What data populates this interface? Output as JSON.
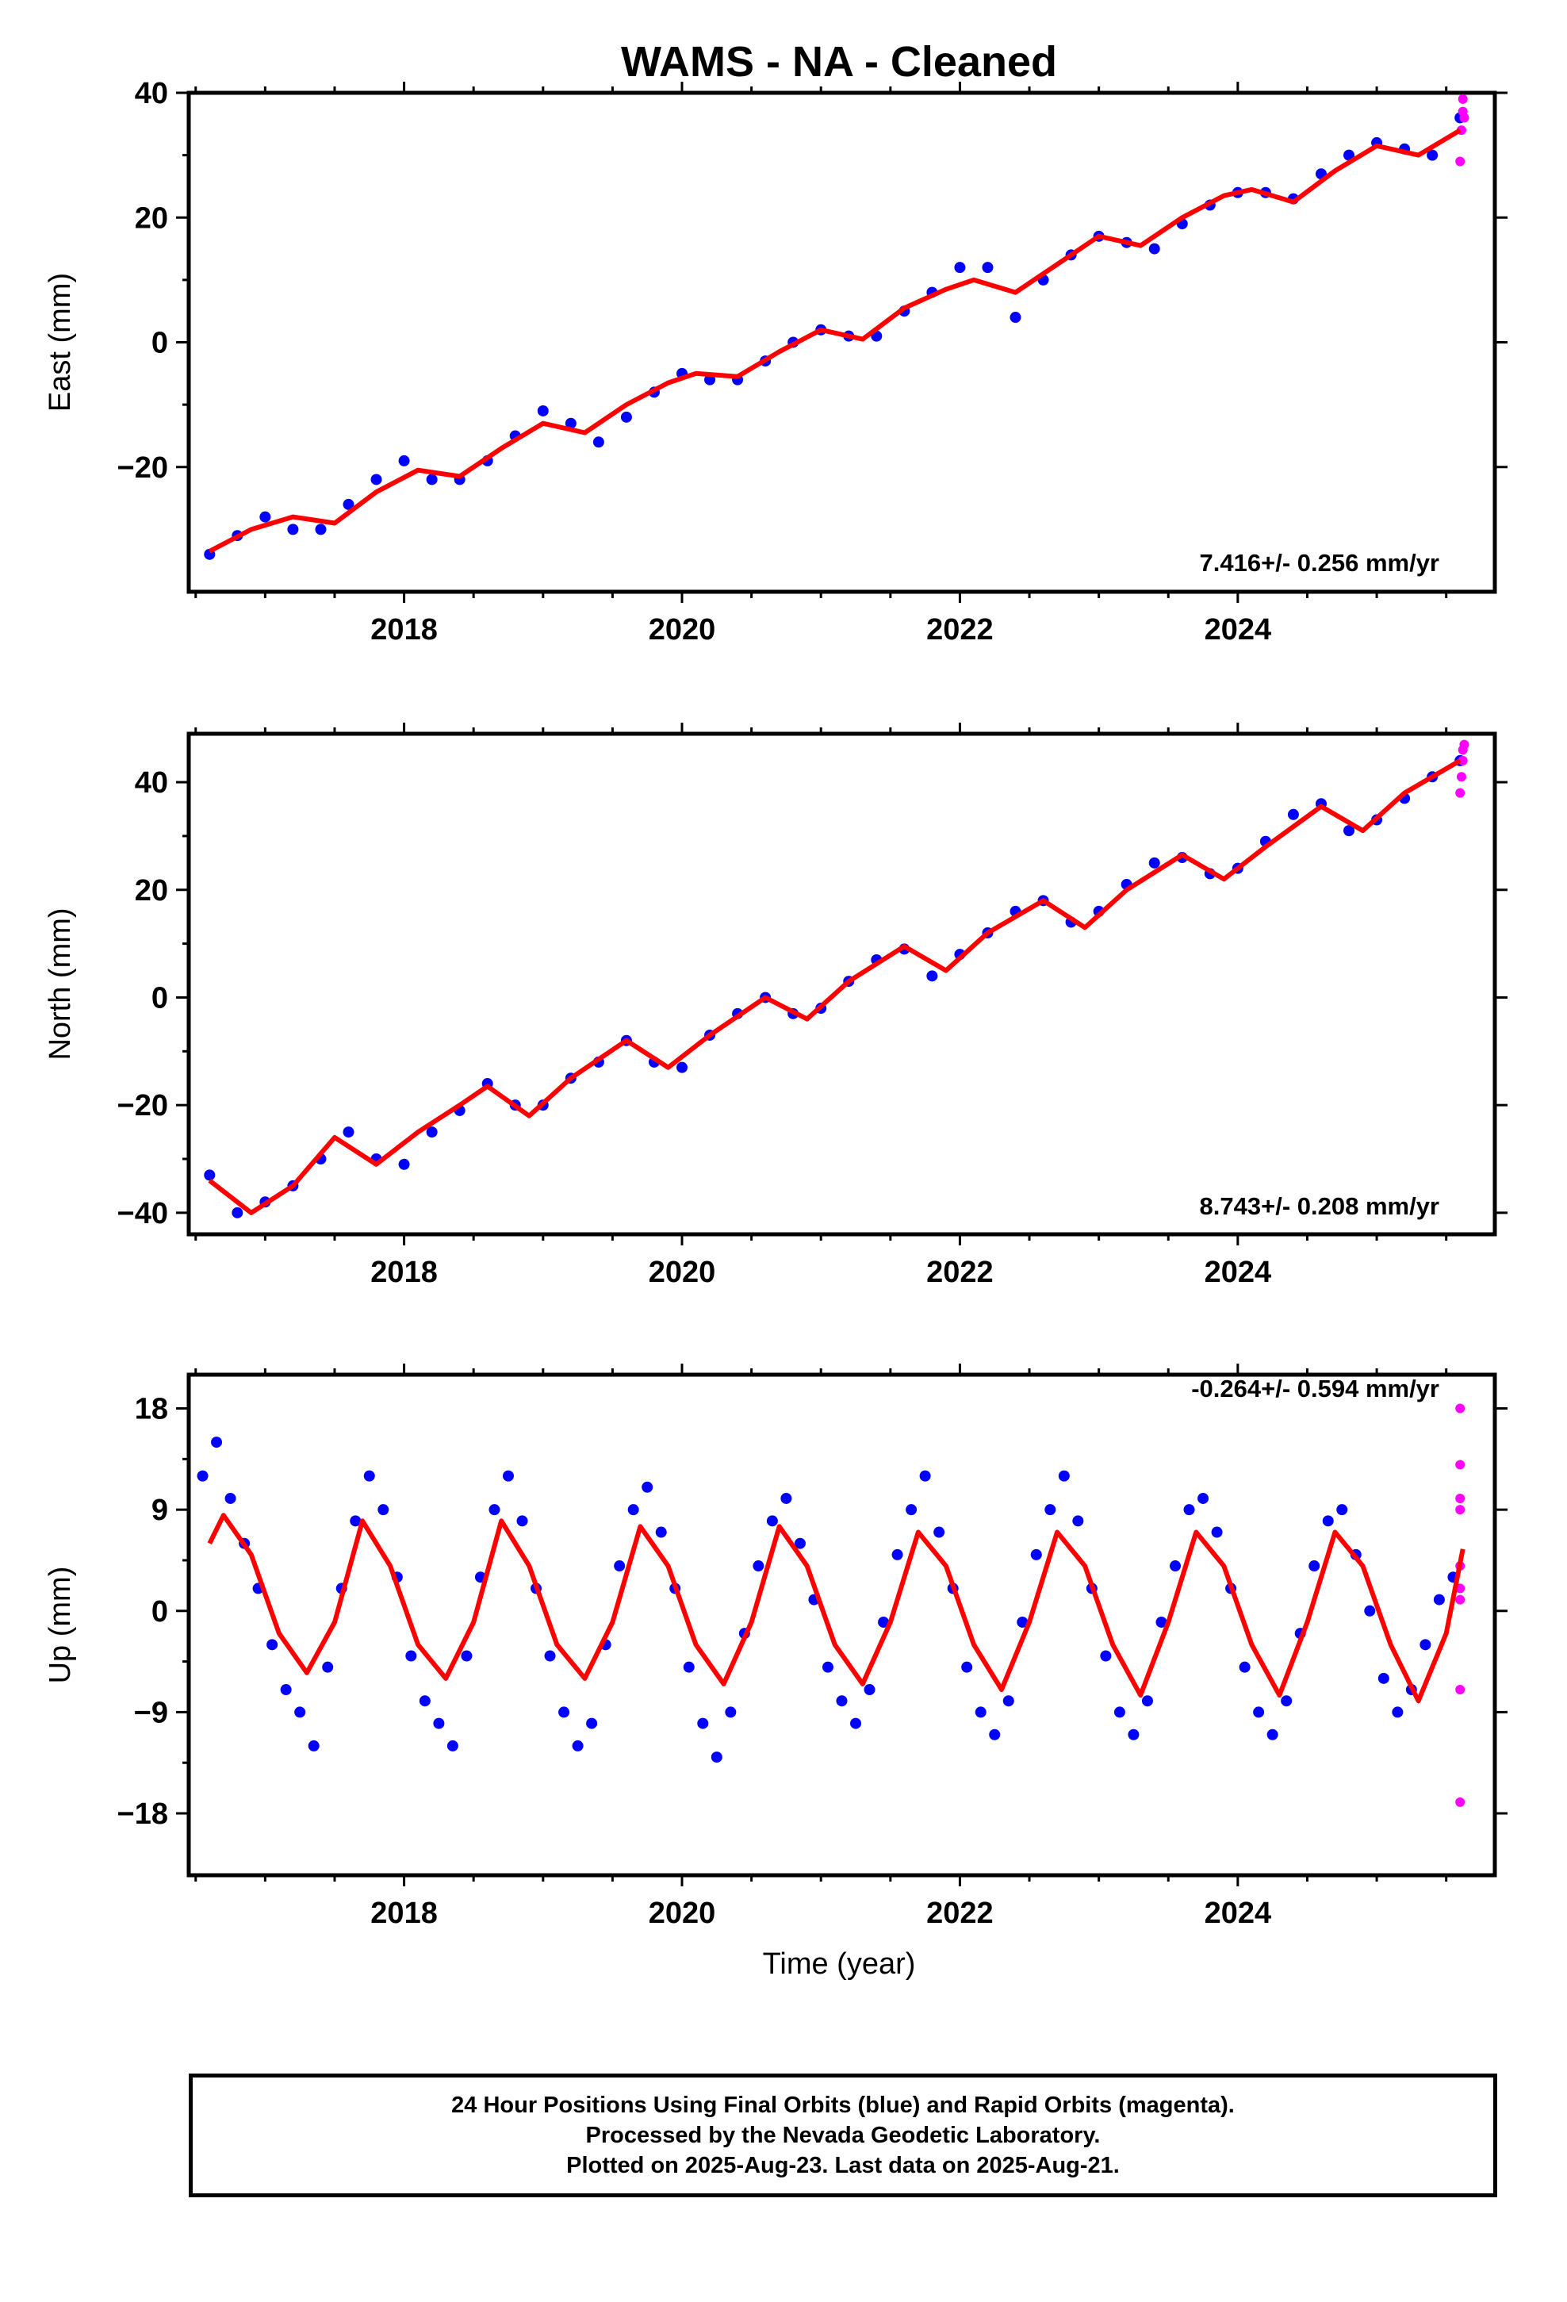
{
  "figure": {
    "title": "WAMS  - NA - Cleaned",
    "xlabel": "Time (year)",
    "footer": [
      "24 Hour Positions Using Final Orbits (blue) and Rapid Orbits (magenta).",
      "Processed by the Nevada Geodetic Laboratory.",
      "Plotted on 2025-Aug-23. Last data on 2025-Aug-21."
    ]
  },
  "colors": {
    "final": "#0000ff",
    "rapid": "#ff00ff",
    "model": "#ff0000",
    "frame": "#000000"
  },
  "chart_data": [
    {
      "type": "scatter",
      "ylabel": "East (mm)",
      "rate_label": "7.416+/- 0.256 mm/yr",
      "xlim": [
        2016.45,
        2025.85
      ],
      "ylim": [
        -40,
        40
      ],
      "xticks": [
        2018,
        2020,
        2022,
        2024
      ],
      "yticks": [
        -20,
        0,
        20,
        40
      ],
      "ytick_labels": [
        "−20",
        "0",
        "20",
        "40"
      ],
      "model": {
        "x": [
          2016.6,
          2016.9,
          2017.2,
          2017.5,
          2017.8,
          2018.1,
          2018.4,
          2018.7,
          2019.0,
          2019.3,
          2019.6,
          2019.9,
          2020.1,
          2020.4,
          2020.7,
          2021.0,
          2021.3,
          2021.6,
          2021.9,
          2022.1,
          2022.4,
          2022.7,
          2023.0,
          2023.3,
          2023.6,
          2023.9,
          2024.1,
          2024.4,
          2024.7,
          2025.0,
          2025.3,
          2025.6
        ],
        "y": [
          -33.5,
          -30,
          -28,
          -29,
          -24,
          -20.5,
          -21.5,
          -17,
          -13,
          -14.5,
          -10,
          -6.5,
          -5,
          -5.5,
          -1.5,
          2,
          0.5,
          5.5,
          8.5,
          10,
          8,
          12.5,
          17,
          15.5,
          20,
          23.5,
          24.5,
          22.5,
          27.5,
          31.5,
          30,
          34
        ]
      },
      "final": {
        "x": [
          2016.6,
          2016.8,
          2017.0,
          2017.2,
          2017.4,
          2017.6,
          2017.8,
          2018.0,
          2018.2,
          2018.4,
          2018.6,
          2018.8,
          2019.0,
          2019.2,
          2019.4,
          2019.6,
          2019.8,
          2020.0,
          2020.2,
          2020.4,
          2020.6,
          2020.8,
          2021.0,
          2021.2,
          2021.4,
          2021.6,
          2021.8,
          2022.0,
          2022.2,
          2022.4,
          2022.6,
          2022.8,
          2023.0,
          2023.2,
          2023.4,
          2023.6,
          2023.8,
          2024.0,
          2024.2,
          2024.4,
          2024.6,
          2024.8,
          2025.0,
          2025.2,
          2025.4,
          2025.6
        ],
        "y": [
          -34,
          -31,
          -28,
          -30,
          -30,
          -26,
          -22,
          -19,
          -22,
          -22,
          -19,
          -15,
          -11,
          -13,
          -16,
          -12,
          -8,
          -5,
          -6,
          -6,
          -3,
          0,
          2,
          1,
          1,
          5,
          8,
          12,
          12,
          4,
          10,
          14,
          17,
          16,
          15,
          19,
          22,
          24,
          24,
          23,
          27,
          30,
          32,
          31,
          30,
          36
        ]
      },
      "rapid": {
        "x": [
          2025.6,
          2025.61,
          2025.62,
          2025.62,
          2025.63
        ],
        "y": [
          29,
          34,
          37,
          39,
          36
        ]
      }
    },
    {
      "type": "scatter",
      "ylabel": "North (mm)",
      "rate_label": "8.743+/- 0.208 mm/yr",
      "xlim": [
        2016.45,
        2025.85
      ],
      "ylim": [
        -44,
        49
      ],
      "xticks": [
        2018,
        2020,
        2022,
        2024
      ],
      "yticks": [
        -40,
        -20,
        0,
        20,
        40
      ],
      "ytick_labels": [
        "−40",
        "−20",
        "0",
        "20",
        "40"
      ],
      "model": {
        "x": [
          2016.6,
          2016.9,
          2017.2,
          2017.5,
          2017.8,
          2018.1,
          2018.4,
          2018.6,
          2018.9,
          2019.2,
          2019.6,
          2019.9,
          2020.2,
          2020.6,
          2020.9,
          2021.2,
          2021.6,
          2021.9,
          2022.2,
          2022.6,
          2022.9,
          2023.2,
          2023.6,
          2023.9,
          2024.2,
          2024.6,
          2024.9,
          2025.2,
          2025.6
        ],
        "y": [
          -34,
          -40,
          -35,
          -26,
          -31,
          -25,
          -20,
          -16.5,
          -22,
          -15,
          -8,
          -13,
          -7,
          0,
          -4,
          3,
          9.5,
          5,
          12,
          18,
          13,
          20,
          26.5,
          22,
          28,
          35.5,
          31,
          38,
          44
        ]
      },
      "final": {
        "x": [
          2016.6,
          2016.8,
          2017.0,
          2017.2,
          2017.4,
          2017.6,
          2017.8,
          2018.0,
          2018.2,
          2018.4,
          2018.6,
          2018.8,
          2019.0,
          2019.2,
          2019.4,
          2019.6,
          2019.8,
          2020.0,
          2020.2,
          2020.4,
          2020.6,
          2020.8,
          2021.0,
          2021.2,
          2021.4,
          2021.6,
          2021.8,
          2022.0,
          2022.2,
          2022.4,
          2022.6,
          2022.8,
          2023.0,
          2023.2,
          2023.4,
          2023.6,
          2023.8,
          2024.0,
          2024.2,
          2024.4,
          2024.6,
          2024.8,
          2025.0,
          2025.2,
          2025.4,
          2025.6
        ],
        "y": [
          -33,
          -40,
          -38,
          -35,
          -30,
          -25,
          -30,
          -31,
          -25,
          -21,
          -16,
          -20,
          -20,
          -15,
          -12,
          -8,
          -12,
          -13,
          -7,
          -3,
          0,
          -3,
          -2,
          3,
          7,
          9,
          4,
          8,
          12,
          16,
          18,
          14,
          16,
          21,
          25,
          26,
          23,
          24,
          29,
          34,
          36,
          31,
          33,
          37,
          41,
          44
        ]
      },
      "rapid": {
        "x": [
          2025.6,
          2025.61,
          2025.62,
          2025.62,
          2025.63
        ],
        "y": [
          38,
          41,
          44,
          46,
          47
        ]
      }
    },
    {
      "type": "scatter",
      "ylabel": "Up (mm)",
      "rate_label": "-0.264+/- 0.594 mm/yr",
      "xlim": [
        2016.45,
        2025.85
      ],
      "ylim": [
        -23.5,
        21
      ],
      "xticks": [
        2018,
        2020,
        2022,
        2024
      ],
      "yticks": [
        -18,
        -9,
        0,
        9,
        18
      ],
      "ytick_labels": [
        "−18",
        "−9",
        "0",
        "9",
        "18"
      ],
      "model": {
        "x": [
          2016.6,
          2016.7,
          2016.9,
          2017.1,
          2017.3,
          2017.5,
          2017.7,
          2017.9,
          2018.1,
          2018.3,
          2018.5,
          2018.7,
          2018.9,
          2019.1,
          2019.3,
          2019.5,
          2019.7,
          2019.9,
          2020.1,
          2020.3,
          2020.5,
          2020.7,
          2020.9,
          2021.1,
          2021.3,
          2021.5,
          2021.7,
          2021.9,
          2022.1,
          2022.3,
          2022.5,
          2022.7,
          2022.9,
          2023.1,
          2023.3,
          2023.5,
          2023.7,
          2023.9,
          2024.1,
          2024.3,
          2024.5,
          2024.7,
          2024.9,
          2025.1,
          2025.3,
          2025.5,
          2025.62
        ],
        "y": [
          6,
          8.5,
          5,
          -2,
          -5.5,
          -1,
          8,
          4,
          -3,
          -6,
          -1,
          8,
          4,
          -3,
          -6,
          -1,
          7.5,
          4,
          -3,
          -6.5,
          -1,
          7.5,
          4,
          -3,
          -6.5,
          -1,
          7,
          4,
          -3,
          -7,
          -1,
          7,
          4,
          -3,
          -7.5,
          -1,
          7,
          4,
          -3,
          -7.5,
          -1,
          7,
          4,
          -3,
          -8,
          -2,
          5.5
        ]
      },
      "final": {
        "x": [
          2016.55,
          2016.65,
          2016.75,
          2016.85,
          2016.95,
          2017.05,
          2017.15,
          2017.25,
          2017.35,
          2017.45,
          2017.55,
          2017.65,
          2017.75,
          2017.85,
          2017.95,
          2018.05,
          2018.15,
          2018.25,
          2018.35,
          2018.45,
          2018.55,
          2018.65,
          2018.75,
          2018.85,
          2018.95,
          2019.05,
          2019.15,
          2019.25,
          2019.35,
          2019.45,
          2019.55,
          2019.65,
          2019.75,
          2019.85,
          2019.95,
          2020.05,
          2020.15,
          2020.25,
          2020.35,
          2020.45,
          2020.55,
          2020.65,
          2020.75,
          2020.85,
          2020.95,
          2021.05,
          2021.15,
          2021.25,
          2021.35,
          2021.45,
          2021.55,
          2021.65,
          2021.75,
          2021.85,
          2021.95,
          2022.05,
          2022.15,
          2022.25,
          2022.35,
          2022.45,
          2022.55,
          2022.65,
          2022.75,
          2022.85,
          2022.95,
          2023.05,
          2023.15,
          2023.25,
          2023.35,
          2023.45,
          2023.55,
          2023.65,
          2023.75,
          2023.85,
          2023.95,
          2024.05,
          2024.15,
          2024.25,
          2024.35,
          2024.45,
          2024.55,
          2024.65,
          2024.75,
          2024.85,
          2024.95,
          2025.05,
          2025.15,
          2025.25,
          2025.35,
          2025.45,
          2025.55
        ],
        "y": [
          12,
          15,
          10,
          6,
          2,
          -3,
          -7,
          -9,
          -12,
          -5,
          2,
          8,
          12,
          9,
          3,
          -4,
          -8,
          -10,
          -12,
          -4,
          3,
          9,
          12,
          8,
          2,
          -4,
          -9,
          -12,
          -10,
          -3,
          4,
          9,
          11,
          7,
          2,
          -5,
          -10,
          -13,
          -9,
          -2,
          4,
          8,
          10,
          6,
          1,
          -5,
          -8,
          -10,
          -7,
          -1,
          5,
          9,
          12,
          7,
          2,
          -5,
          -9,
          -11,
          -8,
          -1,
          5,
          9,
          12,
          8,
          2,
          -4,
          -9,
          -11,
          -8,
          -1,
          4,
          9,
          10,
          7,
          2,
          -5,
          -9,
          -11,
          -8,
          -2,
          4,
          8,
          9,
          5,
          0,
          -6,
          -9,
          -7,
          -3,
          1,
          3
        ]
      },
      "rapid": {
        "x": [
          2025.6,
          2025.6,
          2025.6,
          2025.6,
          2025.6,
          2025.6,
          2025.6,
          2025.6,
          2025.6
        ],
        "y": [
          18,
          13,
          10,
          9,
          4,
          2,
          1,
          -7,
          -17
        ]
      }
    }
  ]
}
